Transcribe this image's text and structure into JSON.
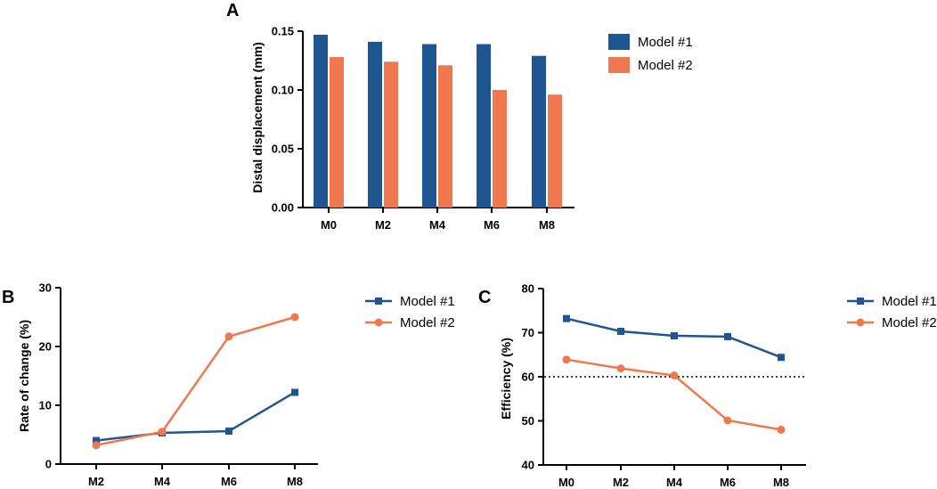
{
  "colors": {
    "model1": "#1f5591",
    "model2": "#f0784e",
    "axis": "#000000"
  },
  "legend_labels": [
    "Model #1",
    "Model #2"
  ],
  "chart_data": [
    {
      "id": "A",
      "panel": "A",
      "type": "bar",
      "categories": [
        "M0",
        "M2",
        "M4",
        "M6",
        "M8"
      ],
      "series": [
        {
          "name": "Model #1",
          "values": [
            0.147,
            0.141,
            0.139,
            0.139,
            0.129
          ]
        },
        {
          "name": "Model #2",
          "values": [
            0.128,
            0.124,
            0.121,
            0.1,
            0.096
          ]
        }
      ],
      "ylabel": "Distal displacement (mm)",
      "xlabel": "",
      "ylim": [
        0,
        0.15
      ],
      "yticks": [
        "0.00",
        "0.05",
        "0.10",
        "0.15"
      ],
      "legend": "right"
    },
    {
      "id": "B",
      "panel": "B",
      "type": "line",
      "categories": [
        "M2",
        "M4",
        "M6",
        "M8"
      ],
      "series": [
        {
          "name": "Model #1",
          "marker": "square",
          "values": [
            4.0,
            5.3,
            5.6,
            12.2
          ]
        },
        {
          "name": "Model #2",
          "marker": "circle",
          "values": [
            3.2,
            5.5,
            21.7,
            25.0
          ]
        }
      ],
      "ylabel": "Rate of change  (%)",
      "xlabel": "",
      "ylim": [
        0,
        30
      ],
      "yticks": [
        "0",
        "10",
        "20",
        "30"
      ],
      "legend": "right"
    },
    {
      "id": "C",
      "panel": "C",
      "type": "line",
      "categories": [
        "M0",
        "M2",
        "M4",
        "M6",
        "M8"
      ],
      "series": [
        {
          "name": "Model #1",
          "marker": "square",
          "values": [
            73.2,
            70.3,
            69.3,
            69.1,
            64.4
          ]
        },
        {
          "name": "Model #2",
          "marker": "circle",
          "values": [
            63.9,
            61.9,
            60.3,
            50.1,
            48.0
          ]
        }
      ],
      "reference_line": 60,
      "ylabel": "Efficiency (%)",
      "xlabel": "",
      "ylim": [
        40,
        80
      ],
      "yticks": [
        "40",
        "50",
        "60",
        "70",
        "80"
      ],
      "legend": "right"
    }
  ]
}
